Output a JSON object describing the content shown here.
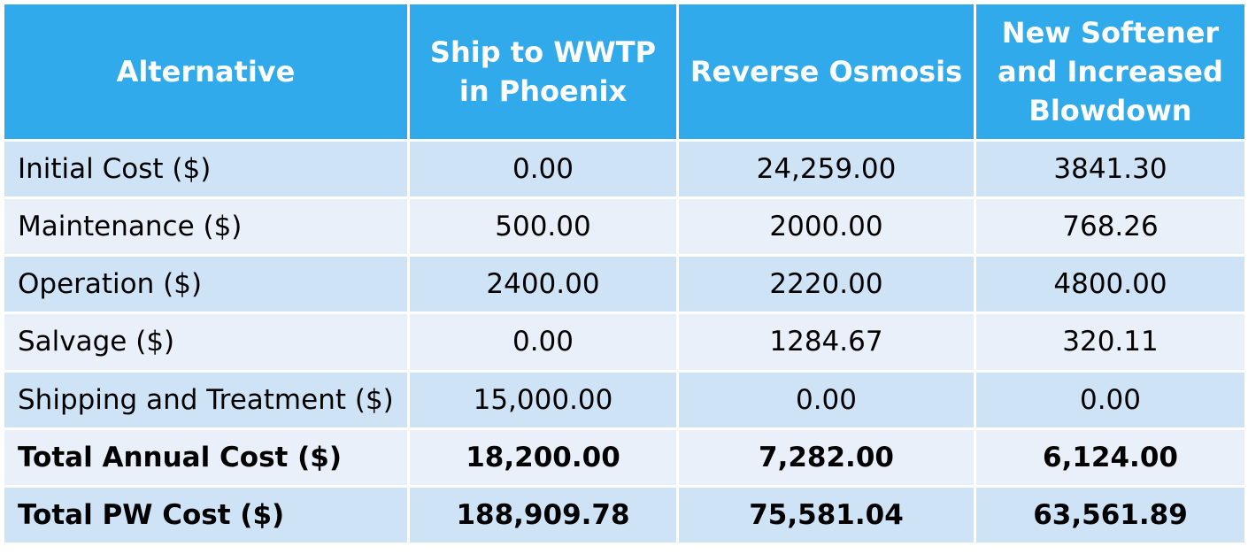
{
  "chart_data": {
    "type": "table",
    "columns": [
      "Alternative",
      "Ship to WWTP in Phoenix",
      "Reverse Osmosis",
      "New Softener and Increased Blowdown"
    ],
    "rows": [
      {
        "label": "Initial Cost ($)",
        "values": [
          "0.00",
          "24,259.00",
          "3841.30"
        ],
        "bold": false
      },
      {
        "label": "Maintenance ($)",
        "values": [
          "500.00",
          "2000.00",
          "768.26"
        ],
        "bold": false
      },
      {
        "label": "Operation ($)",
        "values": [
          "2400.00",
          "2220.00",
          "4800.00"
        ],
        "bold": false
      },
      {
        "label": "Salvage ($)",
        "values": [
          "0.00",
          "1284.67",
          "320.11"
        ],
        "bold": false
      },
      {
        "label": "Shipping and Treatment ($)",
        "values": [
          "15,000.00",
          "0.00",
          "0.00"
        ],
        "bold": false
      },
      {
        "label": "Total Annual Cost ($)",
        "values": [
          "18,200.00",
          "7,282.00",
          "6,124.00"
        ],
        "bold": true
      },
      {
        "label": "Total PW Cost ($)",
        "values": [
          "188,909.78",
          "75,581.04",
          "63,561.89"
        ],
        "bold": true
      }
    ]
  },
  "colors": {
    "header_background": "#30aaea",
    "header_text": "#ffffff",
    "row_band_a": "#cfe3f6",
    "row_band_b": "#e9f0fa",
    "grid_lines": "#ffffff"
  }
}
